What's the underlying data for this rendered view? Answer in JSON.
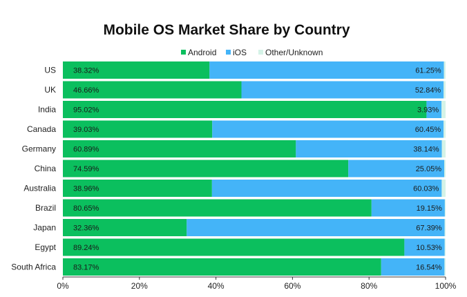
{
  "chart_data": {
    "type": "bar",
    "orientation": "horizontal",
    "stacked": true,
    "title": "Mobile OS Market Share by Country",
    "xlabel": "",
    "ylabel": "",
    "xlim": [
      0,
      100
    ],
    "x_ticks": [
      "0%",
      "20%",
      "40%",
      "60%",
      "80%",
      "100%"
    ],
    "x_tick_values": [
      0,
      20,
      40,
      60,
      80,
      100
    ],
    "legend_position": "top-center",
    "grid": false,
    "categories": [
      "US",
      "UK",
      "India",
      "Canada",
      "Germany",
      "China",
      "Australia",
      "Brazil",
      "Japan",
      "Egypt",
      "South Africa"
    ],
    "series": [
      {
        "name": "Android",
        "color": "#0bbf5e",
        "values": [
          38.32,
          46.66,
          95.02,
          39.03,
          60.89,
          74.59,
          38.96,
          80.65,
          32.36,
          89.24,
          83.17
        ],
        "labels": [
          "38.32%",
          "46.66%",
          "95.02%",
          "39.03%",
          "60.89%",
          "74.59%",
          "38.96%",
          "80.65%",
          "32.36%",
          "89.24%",
          "83.17%"
        ]
      },
      {
        "name": "iOS",
        "color": "#44b4f8",
        "values": [
          61.25,
          52.84,
          3.93,
          60.45,
          38.14,
          25.05,
          60.03,
          19.15,
          67.39,
          10.53,
          16.54
        ],
        "labels": [
          "61.25%",
          "52.84%",
          "3.93%",
          "60.45%",
          "38.14%",
          "25.05%",
          "60.03%",
          "19.15%",
          "67.39%",
          "10.53%",
          "16.54%"
        ]
      },
      {
        "name": "Other/Unknown",
        "color": "#d5f3e7",
        "values": [
          0.43,
          0.5,
          1.05,
          0.52,
          0.97,
          0.36,
          1.01,
          0.2,
          0.25,
          0.23,
          0.29
        ]
      }
    ]
  }
}
